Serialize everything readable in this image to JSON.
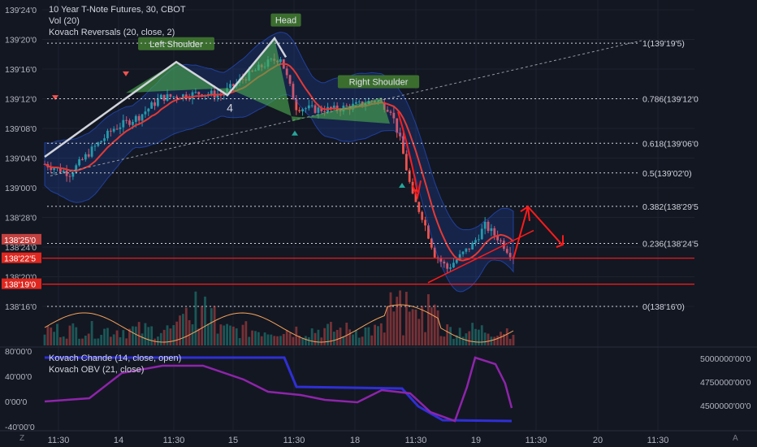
{
  "legend": {
    "symbol": "10 Year T-Note Futures, 30, CBOT",
    "volume": "Vol (20)",
    "reversals": "Kovach Reversals (20, close, 2)",
    "chande": "Kovach Chande (14, close, open)",
    "obv": "Kovach OBV (21, close)"
  },
  "corner": {
    "left": "Z",
    "right": "A"
  },
  "colors": {
    "background": "#131722",
    "up": "#26a69a",
    "down": "#ef5350",
    "band": "#2962ff",
    "pattern": "#4caf50",
    "annotation": "#ff1a1a",
    "chande_line": "#2f2fd6",
    "obv_line": "#8e24aa"
  },
  "chart_data": [
    {
      "type": "candlestick",
      "title": "10 Year T-Note Futures, 30, CBOT",
      "y_axis": {
        "min": "138'14'0",
        "max": "139'24'0",
        "ticks": [
          "139'24'0",
          "139'20'0",
          "139'16'0",
          "139'12'0",
          "139'08'0",
          "139'04'0",
          "139'00'0",
          "138'28'0",
          "138'24'0",
          "138'20'0",
          "138'16'0"
        ]
      },
      "x_axis": {
        "ticks": [
          "11:30",
          "14",
          "11:30",
          "15",
          "11:30",
          "18",
          "11:30",
          "19",
          "11:30",
          "20",
          "11:30"
        ]
      },
      "price_labels": [
        "138'25'0",
        "138'22'5",
        "138'19'0"
      ],
      "fibonacci": [
        {
          "level": "1",
          "price": "139'19'5",
          "label": "1(139'19'5)"
        },
        {
          "level": "0.786",
          "price": "139'12'0",
          "label": "0.786(139'12'0"
        },
        {
          "level": "0.618",
          "price": "139'06'0",
          "label": "0.618(139'06'0"
        },
        {
          "level": "0.5",
          "price": "139'02'0",
          "label": "0.5(139'02'0)"
        },
        {
          "level": "0.382",
          "price": "138'29'5",
          "label": "0.382(138'29'5"
        },
        {
          "level": "0.236",
          "price": "138'24'5",
          "label": "0.236(138'24'5"
        },
        {
          "level": "0",
          "price": "138'16'0",
          "label": "0(138'16'0)"
        }
      ],
      "annotations": [
        "Left Shoulder",
        "Head",
        "Right Shoulder",
        "4"
      ],
      "horizontal_lines": [
        "138'22'5",
        "138'19'0"
      ]
    },
    {
      "type": "line",
      "title": "Kovach Chande (14, close, open)",
      "y_axis": {
        "ticks": [
          "80'00'0",
          "40'00'0",
          "0'00'0",
          "-40'00'0"
        ]
      },
      "series": [
        {
          "name": "Kovach Chande (14, close, open)"
        },
        {
          "name": "Kovach OBV (21, close)"
        }
      ],
      "right_axis": {
        "ticks": [
          "5000000'00'0",
          "4750000'00'0",
          "4500000'00'0"
        ]
      }
    }
  ]
}
